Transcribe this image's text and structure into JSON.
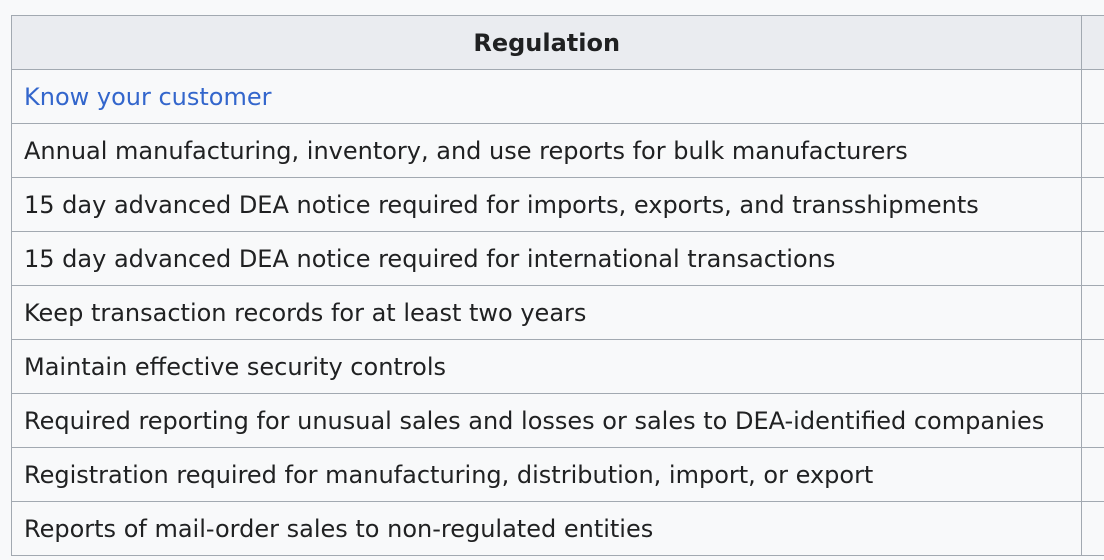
{
  "table": {
    "header": "Regulation",
    "rows": [
      {
        "text": "Know your customer",
        "is_link": true
      },
      {
        "text": "Annual manufacturing, inventory, and use reports for bulk manufacturers",
        "is_link": false
      },
      {
        "text": "15 day advanced DEA notice required for imports, exports, and transshipments",
        "is_link": false
      },
      {
        "text": "15 day advanced DEA notice required for international transactions",
        "is_link": false
      },
      {
        "text": "Keep transaction records for at least two years",
        "is_link": false
      },
      {
        "text": "Maintain effective security controls",
        "is_link": false
      },
      {
        "text": "Required reporting for unusual sales and losses or sales to DEA-identified companies",
        "is_link": false
      },
      {
        "text": "Registration required for manufacturing, distribution, import, or export",
        "is_link": false
      },
      {
        "text": "Reports of mail-order sales to non-regulated entities",
        "is_link": false
      }
    ]
  },
  "colors": {
    "link": "#3366cc",
    "header_bg": "#eaecf0",
    "border": "#a2a9b1",
    "text": "#202122"
  }
}
